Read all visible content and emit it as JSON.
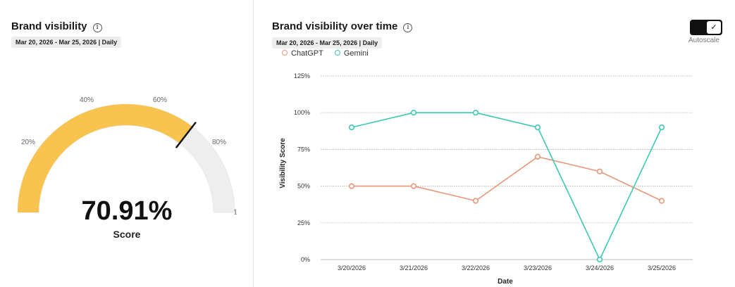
{
  "left_panel": {
    "title": "Brand visibility",
    "date_range": "Mar 20, 2026 - Mar 25, 2026 | Daily",
    "gauge": {
      "value": 0.7091,
      "min": 0,
      "max": 1,
      "max_label": "1",
      "tick_labels": [
        "20%",
        "40%",
        "60%",
        "80%"
      ],
      "fill_color": "#f8c34f",
      "track_color": "#eeeeee"
    },
    "score_value": "70.91%",
    "score_label": "Score"
  },
  "right_panel": {
    "title": "Brand visibility over time",
    "date_range": "Mar 20, 2026 - Mar 25, 2026 | Daily",
    "autoscale_label": "Autoscale",
    "autoscale_on": true
  },
  "chart_data": {
    "type": "line",
    "categories": [
      "3/20/2026",
      "3/21/2026",
      "3/22/2026",
      "3/23/2026",
      "3/24/2026",
      "3/25/2026"
    ],
    "series": [
      {
        "name": "ChatGPT",
        "color": "#e8967a",
        "values": [
          50,
          50,
          40,
          70,
          60,
          40
        ]
      },
      {
        "name": "Gemini",
        "color": "#3cc9b4",
        "values": [
          90,
          100,
          100,
          90,
          0,
          90
        ]
      }
    ],
    "xlabel": "Date",
    "ylabel": "Visibility Score",
    "ylim": [
      0,
      125
    ],
    "yticks": [
      "0%",
      "25%",
      "50%",
      "75%",
      "100%",
      "125%"
    ],
    "grid": true,
    "legend": "top-left"
  }
}
